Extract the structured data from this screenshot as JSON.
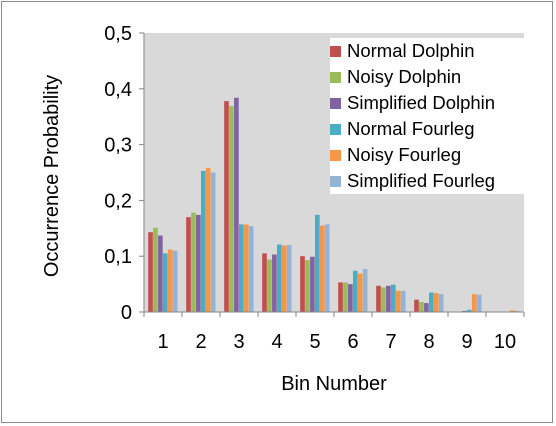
{
  "chart_data": {
    "type": "bar",
    "title": "",
    "xlabel": "Bin Number",
    "ylabel": "Occurrence  Probability",
    "categories": [
      "1",
      "2",
      "3",
      "4",
      "5",
      "6",
      "7",
      "8",
      "9",
      "10"
    ],
    "ylim": [
      0,
      0.5
    ],
    "yticks": [
      "0",
      "0,1",
      "0,2",
      "0,3",
      "0,4",
      "0,5"
    ],
    "ytick_values": [
      0,
      0.1,
      0.2,
      0.3,
      0.4,
      0.5
    ],
    "grid": false,
    "plot_background": "#d9d9d9",
    "legend_position": "top-right",
    "series": [
      {
        "name": "Normal Dolphin",
        "color": "#c0504d",
        "values": [
          0.143,
          0.17,
          0.378,
          0.105,
          0.1,
          0.053,
          0.047,
          0.022,
          0.0,
          0.0
        ]
      },
      {
        "name": "Noisy Dolphin",
        "color": "#9bbb59",
        "values": [
          0.151,
          0.178,
          0.369,
          0.094,
          0.093,
          0.053,
          0.044,
          0.018,
          0.0,
          0.0
        ]
      },
      {
        "name": "Simplified Dolphin",
        "color": "#8064a2",
        "values": [
          0.137,
          0.174,
          0.384,
          0.103,
          0.099,
          0.05,
          0.047,
          0.016,
          0.002,
          0.0
        ]
      },
      {
        "name": "Normal Fourleg",
        "color": "#4bacc6",
        "values": [
          0.105,
          0.253,
          0.157,
          0.121,
          0.174,
          0.074,
          0.049,
          0.035,
          0.004,
          0.0
        ]
      },
      {
        "name": "Noisy Fourleg",
        "color": "#f79646",
        "values": [
          0.112,
          0.258,
          0.157,
          0.119,
          0.155,
          0.069,
          0.038,
          0.034,
          0.032,
          0.003
        ]
      },
      {
        "name": "Simplified Fourleg",
        "color": "#95b3d7",
        "values": [
          0.11,
          0.25,
          0.154,
          0.12,
          0.157,
          0.077,
          0.038,
          0.032,
          0.031,
          0.002
        ]
      }
    ]
  }
}
